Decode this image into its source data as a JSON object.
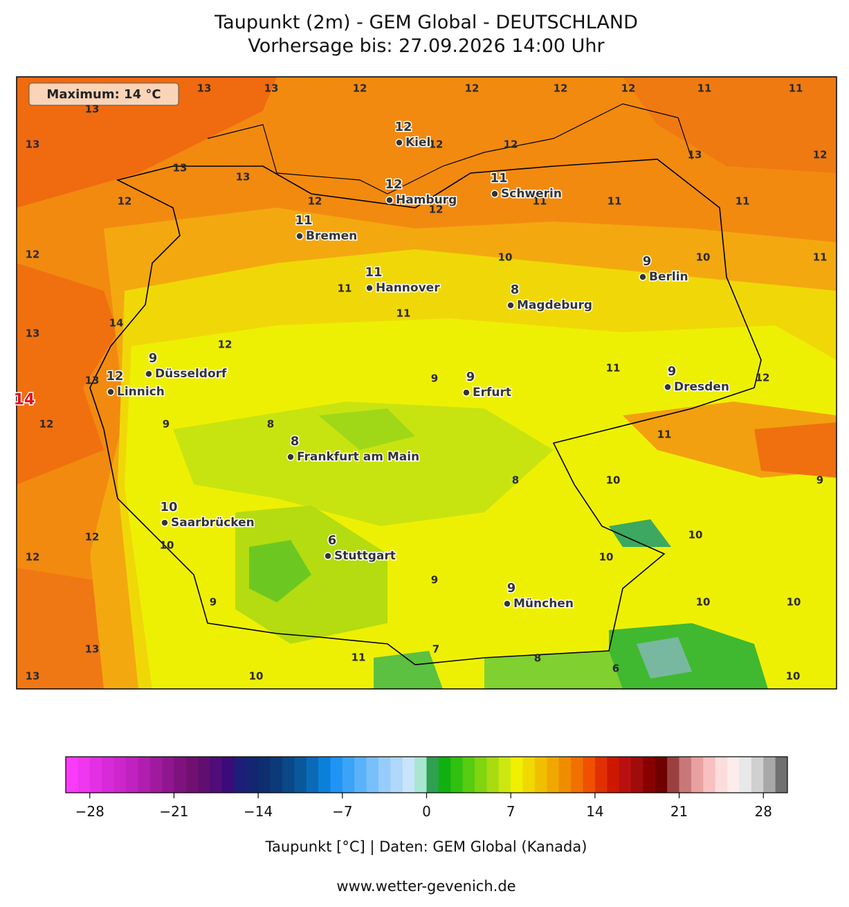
{
  "header": {
    "title": "Taupunkt (2m) - GEM Global - DEUTSCHLAND",
    "subtitle": "Vorhersage bis: 27.09.2026 14:00 Uhr"
  },
  "map": {
    "maximum_box": "Maximum: 14 °C",
    "max_marker": "14",
    "cities": [
      {
        "name": "Kiel",
        "value": 12
      },
      {
        "name": "Hamburg",
        "value": 12
      },
      {
        "name": "Schwerin",
        "value": 11
      },
      {
        "name": "Bremen",
        "value": 11
      },
      {
        "name": "Berlin",
        "value": 9
      },
      {
        "name": "Hannover",
        "value": 11
      },
      {
        "name": "Magdeburg",
        "value": 8
      },
      {
        "name": "Düsseldorf",
        "value": 9
      },
      {
        "name": "Linnich",
        "value": 12
      },
      {
        "name": "Erfurt",
        "value": 9
      },
      {
        "name": "Dresden",
        "value": 9
      },
      {
        "name": "Frankfurt am Main",
        "value": 8
      },
      {
        "name": "Saarbrücken",
        "value": 10
      },
      {
        "name": "Stuttgart",
        "value": 6
      },
      {
        "name": "München",
        "value": 9
      }
    ],
    "contour_labels": [
      13,
      13,
      12,
      12,
      12,
      12,
      11,
      11,
      13,
      13,
      13,
      13,
      12,
      12,
      13,
      12,
      12,
      12,
      12,
      11,
      11,
      11,
      12,
      10,
      10,
      11,
      11,
      11,
      14,
      13,
      12,
      11,
      12,
      9,
      13,
      12,
      9,
      8,
      11,
      8,
      10,
      9,
      10,
      12,
      10,
      12,
      10,
      9,
      9,
      10,
      10,
      13,
      7,
      11,
      8,
      6,
      13,
      10,
      10
    ]
  },
  "colorbar": {
    "range": [
      -30,
      30
    ],
    "ticks": [
      {
        "value": -28,
        "label": "−28"
      },
      {
        "value": -21,
        "label": "−21"
      },
      {
        "value": -14,
        "label": "−14"
      },
      {
        "value": -7,
        "label": "−7"
      },
      0,
      7,
      14,
      21,
      28
    ],
    "colors": [
      "#fa3cfa",
      "#f036f0",
      "#e430e4",
      "#d82ad8",
      "#cc26cc",
      "#c022c0",
      "#b01eb0",
      "#a01aa0",
      "#901690",
      "#801280",
      "#701070",
      "#600e70",
      "#500c78",
      "#3c0a7a",
      "#1e1e78",
      "#142672",
      "#0e2e6e",
      "#0c3a78",
      "#0a4888",
      "#0a589c",
      "#0a6ab8",
      "#0a80d8",
      "#1e94f4",
      "#3ca4f8",
      "#5ab2fa",
      "#78c0fa",
      "#96ccfa",
      "#b0d8fa",
      "#c8e4fa",
      "#a8e6d0",
      "#2ea050",
      "#10b010",
      "#30c010",
      "#58cc10",
      "#80d410",
      "#a8dc10",
      "#cce810",
      "#f0f000",
      "#f0d800",
      "#f0c000",
      "#f0a800",
      "#f08c00",
      "#f07000",
      "#f05000",
      "#e03000",
      "#cc1800",
      "#b81010",
      "#a00c0c",
      "#880000",
      "#700000",
      "#9a4040",
      "#c87878",
      "#e8a0a0",
      "#f8c0c0",
      "#fcdcdc",
      "#fcecec",
      "#e8e8e8",
      "#d0d0d0",
      "#a8a8a8",
      "#707070"
    ],
    "label": "Taupunkt [°C] | Daten: GEM Global (Kanada)"
  },
  "footer": "www.wetter-gevenich.de"
}
